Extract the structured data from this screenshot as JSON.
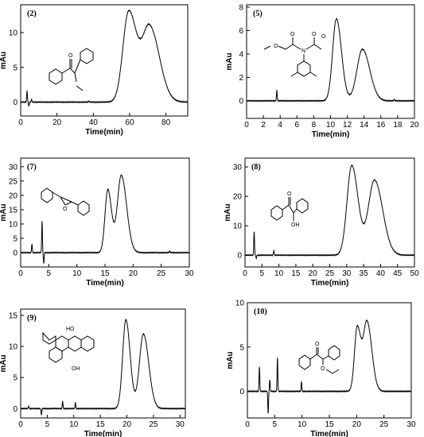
{
  "chart_data": [
    {
      "type": "line",
      "label": "(2)",
      "xlabel": "Time(min)",
      "ylabel": "mAu",
      "xlim": [
        0,
        92
      ],
      "ylim": [
        -2,
        14
      ],
      "xticks": [
        0,
        20,
        40,
        60,
        80
      ],
      "yticks": [
        0,
        5,
        10
      ],
      "baseline": 0,
      "peaks": [
        {
          "x": 59.5,
          "height": 13.0,
          "width": 3.2
        },
        {
          "x": 71.0,
          "height": 10.8,
          "width": 4.0
        }
      ],
      "spikes": [
        {
          "x": 3.5,
          "height": 1.6
        },
        {
          "x": 4.5,
          "height": -0.6
        },
        {
          "x": 6.0,
          "height": 0.4
        },
        {
          "x": 37.5,
          "height": 0.15
        }
      ]
    },
    {
      "type": "line",
      "label": "(5)",
      "xlabel": "Time(min)",
      "ylabel": "mAu",
      "xlim": [
        0,
        20
      ],
      "ylim": [
        -1.5,
        8.2
      ],
      "xticks": [
        0,
        2,
        4,
        6,
        8,
        10,
        12,
        14,
        16,
        18,
        20
      ],
      "yticks": [
        0,
        2,
        4,
        6,
        8
      ],
      "baseline": 0,
      "peaks": [
        {
          "x": 10.7,
          "height": 7.0,
          "width": 0.45
        },
        {
          "x": 13.8,
          "height": 4.4,
          "width": 0.65
        }
      ],
      "spikes": [
        {
          "x": 3.6,
          "height": 0.9
        },
        {
          "x": 17.6,
          "height": 0.15
        }
      ]
    },
    {
      "type": "line",
      "label": "(7)",
      "xlabel": "Time(min)",
      "ylabel": "mAu",
      "xlim": [
        0,
        30
      ],
      "ylim": [
        -5,
        33
      ],
      "xticks": [
        0,
        5,
        10,
        15,
        20,
        25,
        30
      ],
      "yticks": [
        0,
        5,
        10,
        15,
        20,
        25,
        30
      ],
      "baseline": 0,
      "peaks": [
        {
          "x": 15.5,
          "height": 22.0,
          "width": 0.5
        },
        {
          "x": 17.9,
          "height": 27.0,
          "width": 0.7
        }
      ],
      "spikes": [
        {
          "x": 2.0,
          "height": 3.0
        },
        {
          "x": 3.8,
          "height": 11.0
        },
        {
          "x": 4.1,
          "height": -3.8
        },
        {
          "x": 26.5,
          "height": 0.6
        }
      ]
    },
    {
      "type": "line",
      "label": "(8)",
      "xlabel": "Time(min)",
      "ylabel": "mAu",
      "xlim": [
        0,
        50
      ],
      "ylim": [
        -4,
        33
      ],
      "xticks": [
        0,
        5,
        10,
        15,
        20,
        25,
        30,
        35,
        40,
        45,
        50
      ],
      "yticks": [
        0,
        10,
        20,
        30
      ],
      "baseline": 0,
      "peaks": [
        {
          "x": 31.5,
          "height": 30.5,
          "width": 1.4
        },
        {
          "x": 38.2,
          "height": 25.5,
          "width": 1.8
        }
      ],
      "spikes": [
        {
          "x": 2.7,
          "height": 8.0
        },
        {
          "x": 3.3,
          "height": -1.0
        },
        {
          "x": 8.5,
          "height": 1.5
        }
      ]
    },
    {
      "type": "line",
      "label": "(9)",
      "xlabel": "Time(min)",
      "ylabel": "mAu",
      "xlim": [
        0,
        31
      ],
      "ylim": [
        -1.5,
        16
      ],
      "xticks": [
        0,
        5,
        10,
        15,
        20,
        25,
        30
      ],
      "yticks": [
        0,
        5,
        10,
        15
      ],
      "baseline": 0,
      "peaks": [
        {
          "x": 19.8,
          "height": 14.3,
          "width": 0.6
        },
        {
          "x": 23.1,
          "height": 12.0,
          "width": 0.75
        }
      ],
      "spikes": [
        {
          "x": 1.5,
          "height": 0.4
        },
        {
          "x": 3.9,
          "height": -1.0
        },
        {
          "x": 7.9,
          "height": 1.2
        },
        {
          "x": 10.3,
          "height": 1.0
        }
      ]
    },
    {
      "type": "line",
      "label": "(10)",
      "xlabel": "Time(min)",
      "ylabel": "mAu",
      "xlim": [
        0,
        30
      ],
      "ylim": [
        -3,
        10
      ],
      "xticks": [
        0,
        5,
        10,
        15,
        20,
        25,
        30
      ],
      "yticks": [
        0,
        5,
        10
      ],
      "baseline": 0,
      "peaks": [
        {
          "x": 20.1,
          "height": 7.2,
          "width": 0.5
        },
        {
          "x": 21.9,
          "height": 7.8,
          "width": 0.65
        }
      ],
      "spikes": [
        {
          "x": 2.2,
          "height": 2.8
        },
        {
          "x": 3.8,
          "height": -2.5
        },
        {
          "x": 4.1,
          "height": 1.3
        },
        {
          "x": 5.5,
          "height": 3.8
        },
        {
          "x": 9.9,
          "height": 1.1
        }
      ]
    }
  ],
  "structures": {
    "s2": {
      "o_label": "O"
    },
    "s5": {
      "o1": "O",
      "o2": "O",
      "o3": "O",
      "o4": "O",
      "n": "N"
    },
    "s7": {
      "o_label": "O"
    },
    "s8": {
      "o_label": "O",
      "oh_label": "OH"
    },
    "s9": {
      "ho_label": "HO",
      "oh_label": "OH"
    },
    "s10": {
      "o1": "O",
      "o2": "O"
    }
  }
}
